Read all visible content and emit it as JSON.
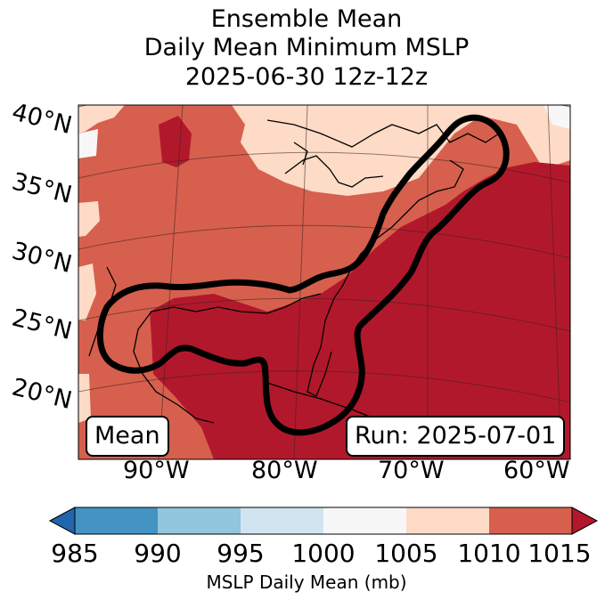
{
  "title": {
    "line1": "Ensemble Mean",
    "line2": "Daily Mean Minimum MSLP",
    "line3": "2025-06-30 12z-12z"
  },
  "map": {
    "lat_labels": [
      "40°N",
      "35°N",
      "30°N",
      "25°N",
      "20°N"
    ],
    "lon_labels": [
      "90°W",
      "80°W",
      "70°W",
      "60°W"
    ],
    "mean_box": "Mean",
    "run_box": "Run: 2025-07-01",
    "colors": {
      "c1010_1015": "#b2182b",
      "c1005_1010": "#d6604d",
      "c1000_1005": "#fddbc7",
      "c995_1000": "#f7f7f7"
    }
  },
  "colorbar": {
    "label": "MSLP Daily Mean (mb)",
    "ticks": [
      "985",
      "990",
      "995",
      "1000",
      "1005",
      "1010",
      "1015"
    ],
    "colors": [
      "#2166ac",
      "#4393c3",
      "#92c5de",
      "#d1e5f0",
      "#f7f7f7",
      "#fddbc7",
      "#d6604d",
      "#b2182b"
    ]
  }
}
